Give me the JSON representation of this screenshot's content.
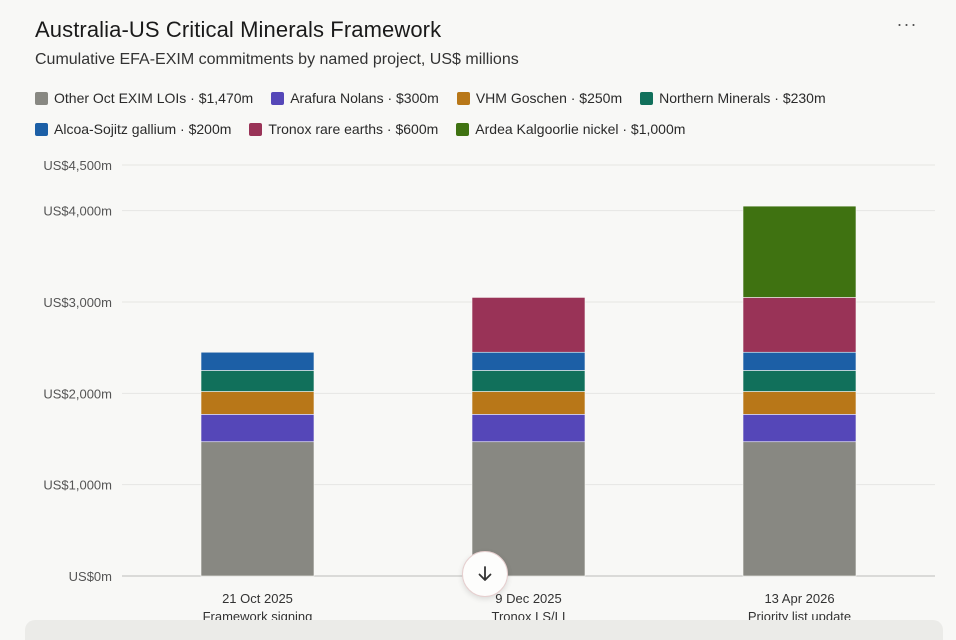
{
  "header": {
    "title": "Australia-US Critical Minerals Framework",
    "subtitle": "Cumulative EFA-EXIM commitments by named project, US$ millions",
    "menu_label": "···"
  },
  "legend": {
    "items": [
      {
        "label": "Other Oct EXIM LOIs · $1,470m",
        "color": "#888882"
      },
      {
        "label": "Arafura Nolans · $300m",
        "color": "#5547b8"
      },
      {
        "label": "VHM Goschen · $250m",
        "color": "#b87718"
      },
      {
        "label": "Northern Minerals · $230m",
        "color": "#11705b"
      },
      {
        "label": "Alcoa-Sojitz gallium · $200m",
        "color": "#1c5fa6"
      },
      {
        "label": "Tronox rare earths · $600m",
        "color": "#993357"
      },
      {
        "label": "Ardea Kalgoorlie nickel · $1,000m",
        "color": "#3f7211"
      }
    ]
  },
  "chart_data": {
    "type": "bar",
    "stacked": true,
    "categories": [
      "21 Oct 2025",
      "9 Dec 2025",
      "13 Apr 2026"
    ],
    "category_sublabels": [
      "Framework signing",
      "Tronox LS/LI",
      "Priority list update"
    ],
    "series": [
      {
        "name": "Other Oct EXIM LOIs",
        "color": "#888882",
        "values": [
          1470,
          1470,
          1470
        ]
      },
      {
        "name": "Arafura Nolans",
        "color": "#5547b8",
        "values": [
          300,
          300,
          300
        ]
      },
      {
        "name": "VHM Goschen",
        "color": "#b87718",
        "values": [
          250,
          250,
          250
        ]
      },
      {
        "name": "Northern Minerals",
        "color": "#11705b",
        "values": [
          230,
          230,
          230
        ]
      },
      {
        "name": "Alcoa-Sojitz gallium",
        "color": "#1c5fa6",
        "values": [
          200,
          200,
          200
        ]
      },
      {
        "name": "Tronox rare earths",
        "color": "#993357",
        "values": [
          0,
          600,
          600
        ]
      },
      {
        "name": "Ardea Kalgoorlie nickel",
        "color": "#3f7211",
        "values": [
          0,
          0,
          1000
        ]
      }
    ],
    "ylim": [
      0,
      4500
    ],
    "yticks": [
      {
        "value": 0,
        "label": "US$0m"
      },
      {
        "value": 1000,
        "label": "US$1,000m"
      },
      {
        "value": 2000,
        "label": "US$2,000m"
      },
      {
        "value": 3000,
        "label": "US$3,000m"
      },
      {
        "value": 4000,
        "label": "US$4,000m"
      },
      {
        "value": 4500,
        "label": "US$4,500m"
      }
    ],
    "grid": true,
    "legend_position": "top"
  }
}
